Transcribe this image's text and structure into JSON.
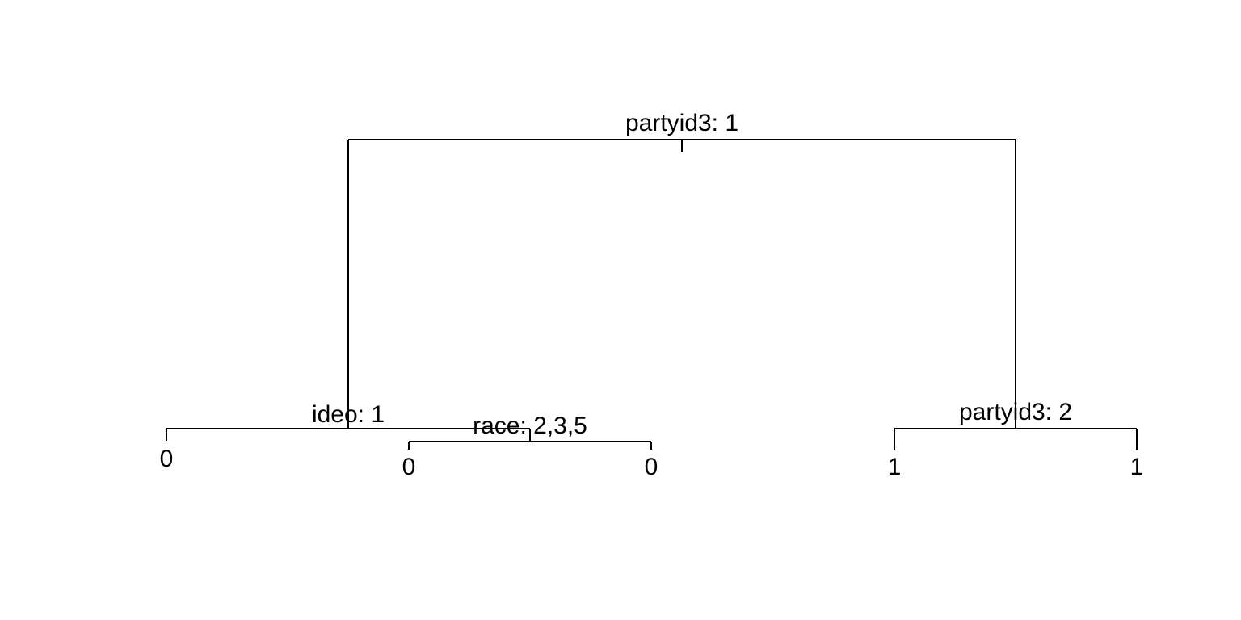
{
  "tree": {
    "root": {
      "split": "partyid3: 1",
      "left": {
        "split": "ideo: 1",
        "left": {
          "leaf": "0"
        },
        "right": {
          "split": "race: 2,3,5",
          "left": {
            "leaf": "0"
          },
          "right": {
            "leaf": "0"
          }
        }
      },
      "right": {
        "split": "partyid3: 2",
        "left": {
          "leaf": "1"
        },
        "right": {
          "leaf": "1"
        }
      }
    }
  }
}
